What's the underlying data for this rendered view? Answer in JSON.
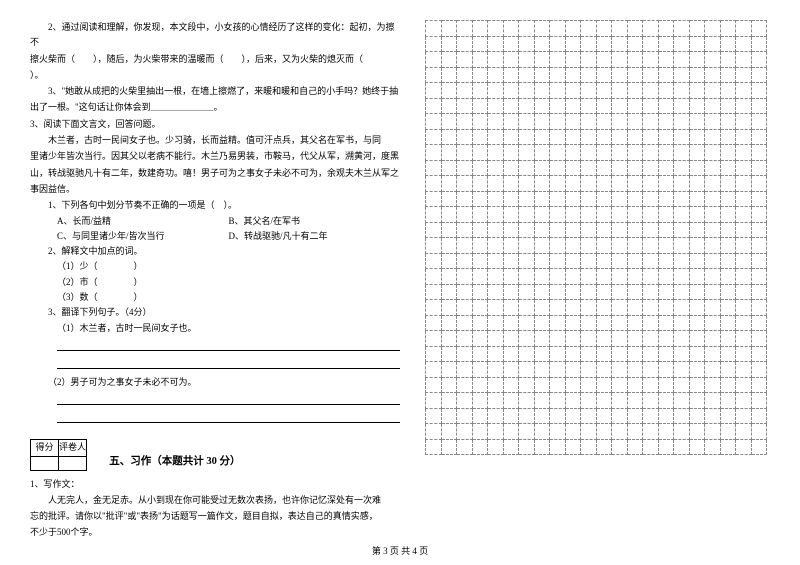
{
  "q2": {
    "line1": "2、通过阅读和理解，你发现，本文段中，小女孩的心情经历了这样的变化：起初，为擦不",
    "line2": "擦火柴而（　　），随后，为火柴带来的温暖而（　　），后来，又为火柴的熄灭而（　　",
    "line3": "）。"
  },
  "q3a": {
    "line1": "3、\"她敢从成把的火柴里抽出一根，在墙上擦燃了，来暖和暖和自己的小手吗？她终于抽",
    "line2": "出了一根。\"这句话让你体会到＿＿＿＿＿＿＿。"
  },
  "reading": {
    "title": "3、阅读下面文言文，回答问题。",
    "p1": "木兰者，古时一民间女子也。少习骑，长而益精。值可汗点兵，其父名在军书，与同",
    "p2": "里诸少年皆次当行。因其父以老病不能行。木兰乃易男装，市鞍马，代父从军，溯黄河，度黑",
    "p3": "山，转战驱驰凡十有二年，数建奇功。嘻！男子可为之事女子未必不可为，余观夫木兰从军之",
    "p4": "事因益信。"
  },
  "sub1": {
    "stem": "1、下列各句中划分节奏不正确的一项是（　）。",
    "a": "A、长而/益精",
    "b": "B、其父名/在军书",
    "c": "C、与同里诸少年/皆次当行",
    "d": "D、转战驱驰/凡十有二年"
  },
  "sub2": {
    "stem": "2、解释文中加点的词。",
    "i1": "（1）少（　　　　）",
    "i2": "（2）市（　　　　）",
    "i3": "（3）数（　　　　）"
  },
  "sub3": {
    "stem": "3、翻译下列句子。（4分）",
    "i1": "（1）木兰者，古时一民间女子也。",
    "i2": "（2）男子可为之事女子未必不可为。"
  },
  "score": {
    "h1": "得分",
    "h2": "评卷人"
  },
  "section5": "五、习作（本题共计 30 分）",
  "essay": {
    "title": "1、写作文：",
    "p1": "人无完人，金无足赤。从小到现在你可能受过无数次表扬，也许你记忆深处有一次难",
    "p2": "忘的批评。请你以\"批评\"或\"表扬\"为话题写一篇作文，题目自拟，表达自己的真情实感，",
    "p3": "不少于500个字。"
  },
  "grid": {
    "rows": 28,
    "cols": 22
  },
  "footer": "第 3 页 共 4 页"
}
